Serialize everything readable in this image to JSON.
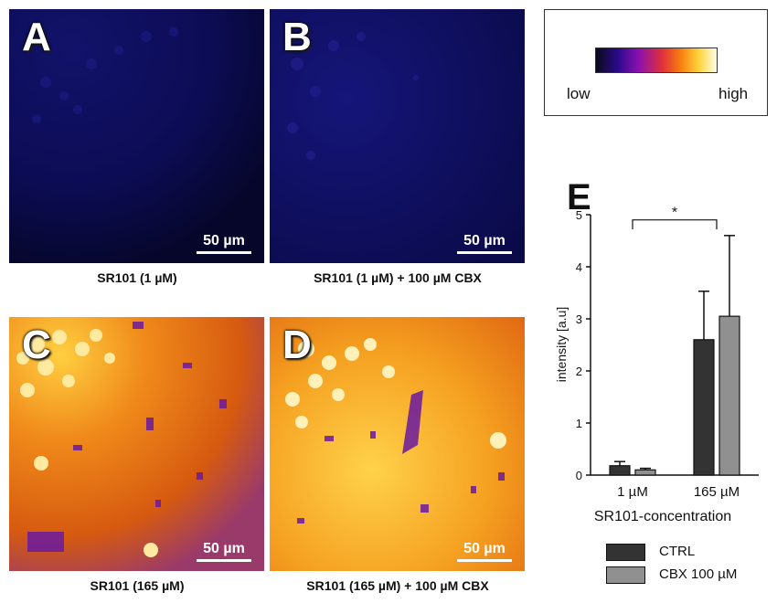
{
  "panels": [
    {
      "letter": "A",
      "caption": "SR101 (1 µM)",
      "scale_label": "50 µm",
      "intensity": "low"
    },
    {
      "letter": "B",
      "caption": "SR101 (1 µM) + 100 µM CBX",
      "scale_label": "50 µm",
      "intensity": "low"
    },
    {
      "letter": "C",
      "caption": "SR101 (165 µM)",
      "scale_label": "50 µm",
      "intensity": "high"
    },
    {
      "letter": "D",
      "caption": "SR101 (165 µM) + 100 µM CBX",
      "scale_label": "50 µm",
      "intensity": "high"
    }
  ],
  "lut": {
    "low_label": "low",
    "high_label": "high"
  },
  "chart_letter": "E",
  "chart_data": {
    "type": "bar",
    "categories": [
      "1 µM",
      "165 µM"
    ],
    "series": [
      {
        "name": "CTRL",
        "color": "#333333",
        "values": [
          0.18,
          2.6
        ],
        "errors": [
          0.08,
          0.93
        ]
      },
      {
        "name": "CBX 100 µM",
        "color": "#909090",
        "values": [
          0.1,
          3.05
        ],
        "errors": [
          0.03,
          1.55
        ]
      }
    ],
    "xlabel": "SR101-concentration",
    "ylabel": "intensity [a.u]",
    "ylim": [
      0,
      5
    ],
    "yticks": [
      0,
      1,
      2,
      3,
      4,
      5
    ],
    "annotations": [
      {
        "text": "*",
        "between": [
          "1 µM",
          "165 µM"
        ]
      }
    ],
    "legend_position": "bottom"
  }
}
